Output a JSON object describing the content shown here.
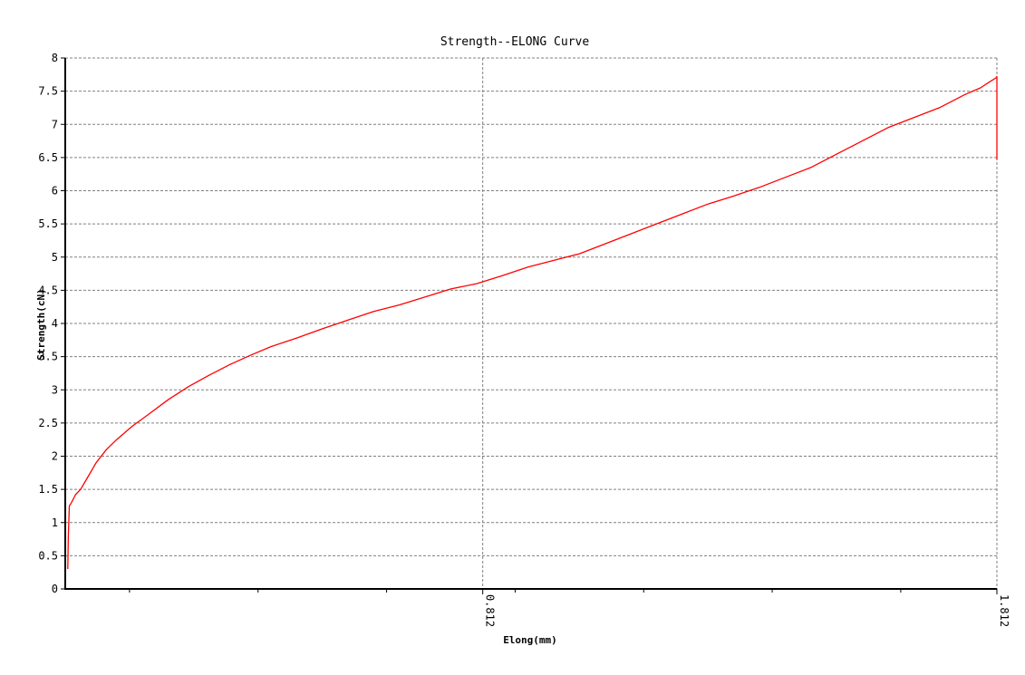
{
  "chart_data": {
    "type": "line",
    "title": "Strength--ELONG Curve",
    "xlabel": "Elong(mm)",
    "ylabel": "Strength(cN)",
    "xlim": [
      0,
      1.812
    ],
    "ylim": [
      0,
      8
    ],
    "x_ticks": [
      0.812,
      1.812
    ],
    "x_tick_labels": [
      "0.812",
      "1.812"
    ],
    "y_ticks": [
      0,
      0.5,
      1,
      1.5,
      2,
      2.5,
      3,
      3.5,
      4,
      4.5,
      5,
      5.5,
      6,
      6.5,
      7,
      7.5,
      8
    ],
    "y_tick_labels": [
      "0",
      "0.5",
      "1",
      "1.5",
      "2",
      "2.5",
      "3",
      "3.5",
      "4",
      "4.5",
      "5",
      "5.5",
      "6",
      "6.5",
      "7",
      "7.5",
      "8"
    ],
    "grid": true,
    "colors": {
      "series": "#ff0000",
      "grid": "#808080",
      "axis": "#000000"
    },
    "series": [
      {
        "x": [
          0.005,
          0.006,
          0.008,
          0.012,
          0.02,
          0.03,
          0.045,
          0.06,
          0.08,
          0.1,
          0.13,
          0.16,
          0.2,
          0.24,
          0.28,
          0.32,
          0.36,
          0.4,
          0.45,
          0.5,
          0.55,
          0.6,
          0.65,
          0.7,
          0.75,
          0.8,
          0.85,
          0.9,
          0.95,
          1.0,
          1.05,
          1.1,
          1.15,
          1.2,
          1.25,
          1.3,
          1.35,
          1.4,
          1.45,
          1.5,
          1.55,
          1.6,
          1.65,
          1.7,
          1.75,
          1.78,
          1.8,
          1.81,
          1.812,
          1.812
        ],
        "y": [
          0.3,
          0.8,
          1.25,
          1.3,
          1.42,
          1.5,
          1.7,
          1.9,
          2.1,
          2.25,
          2.45,
          2.62,
          2.85,
          3.05,
          3.22,
          3.38,
          3.52,
          3.65,
          3.78,
          3.92,
          4.05,
          4.18,
          4.28,
          4.4,
          4.52,
          4.6,
          4.72,
          4.85,
          4.95,
          5.05,
          5.2,
          5.35,
          5.5,
          5.65,
          5.8,
          5.92,
          6.05,
          6.2,
          6.35,
          6.55,
          6.75,
          6.95,
          7.1,
          7.25,
          7.45,
          7.55,
          7.65,
          7.7,
          7.72,
          6.47
        ]
      }
    ]
  }
}
